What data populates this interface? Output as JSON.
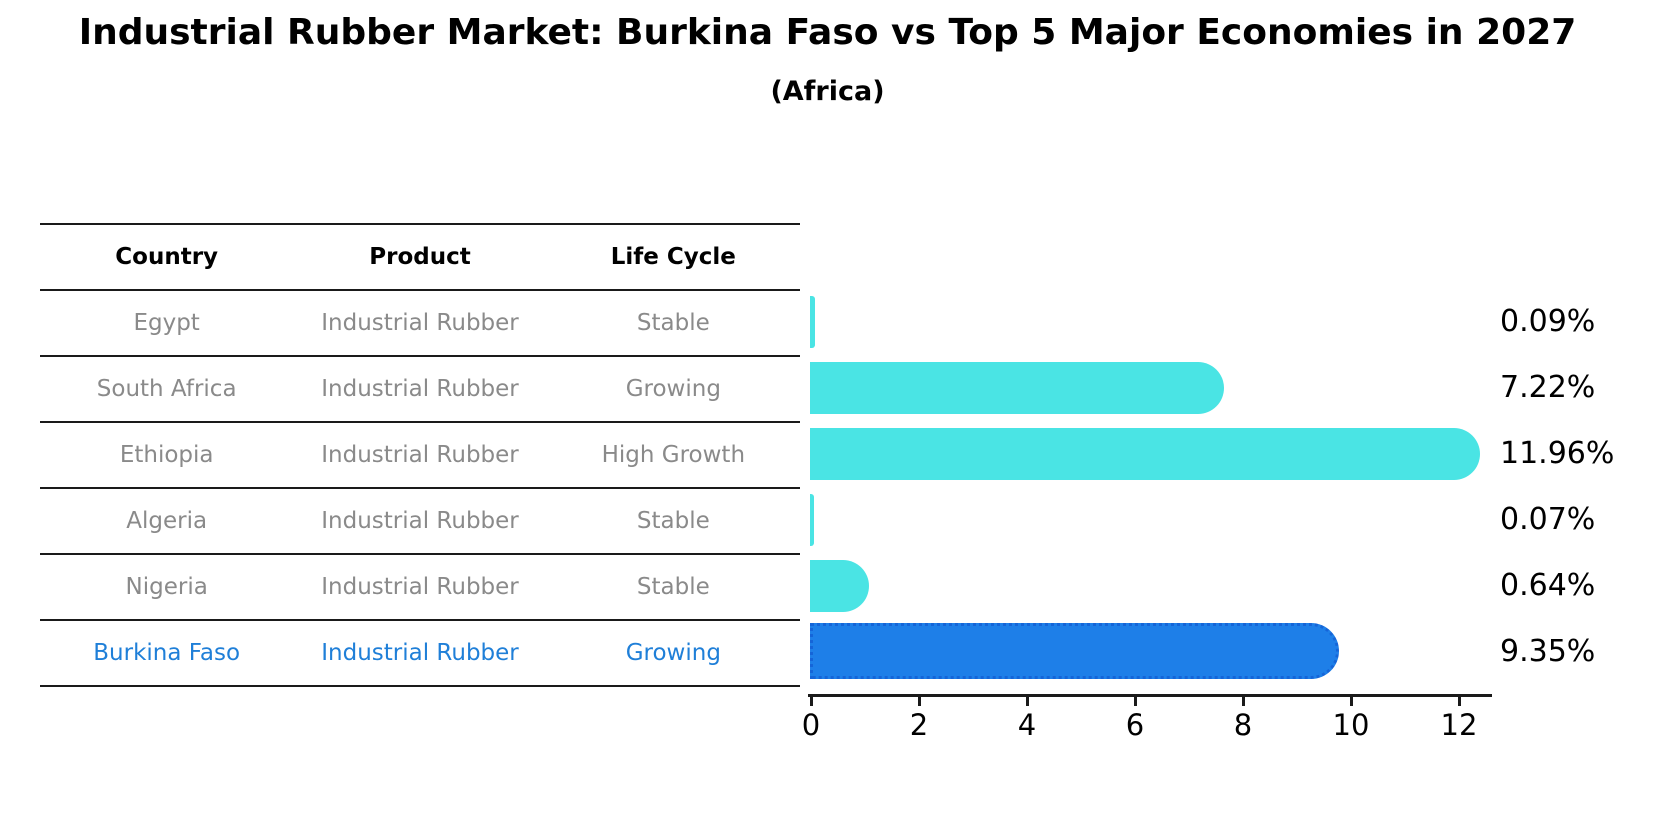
{
  "title": "Industrial Rubber Market: Burkina Faso vs Top 5 Major Economies in 2027",
  "subtitle": "(Africa)",
  "table": {
    "headers": [
      "Country",
      "Product",
      "Life Cycle"
    ],
    "rows": [
      {
        "country": "Egypt",
        "product": "Industrial Rubber",
        "life_cycle": "Stable",
        "highlight": false
      },
      {
        "country": "South Africa",
        "product": "Industrial Rubber",
        "life_cycle": "Growing",
        "highlight": false
      },
      {
        "country": "Ethiopia",
        "product": "Industrial Rubber",
        "life_cycle": "High Growth",
        "highlight": false
      },
      {
        "country": "Algeria",
        "product": "Industrial Rubber",
        "life_cycle": "Stable",
        "highlight": false
      },
      {
        "country": "Nigeria",
        "product": "Industrial Rubber",
        "life_cycle": "Stable",
        "highlight": false
      },
      {
        "country": "Burkina Faso",
        "product": "Industrial Rubber",
        "life_cycle": "Growing",
        "highlight": true
      }
    ]
  },
  "chart_data": {
    "type": "bar",
    "orientation": "horizontal",
    "title": "Industrial Rubber Market: Burkina Faso vs Top 5 Major Economies in 2027 (Africa)",
    "categories": [
      "Egypt",
      "South Africa",
      "Ethiopia",
      "Algeria",
      "Nigeria",
      "Burkina Faso"
    ],
    "values": [
      0.09,
      7.22,
      11.96,
      0.07,
      0.64,
      9.35
    ],
    "value_labels": [
      "0.09%",
      "7.22%",
      "11.96%",
      "0.07%",
      "0.64%",
      "9.35%"
    ],
    "unit": "percent",
    "xlabel": "",
    "ylabel": "",
    "xlim": [
      0,
      12.5
    ],
    "x_ticks": [
      "0",
      "2",
      "4",
      "6",
      "8",
      "10",
      "12"
    ],
    "grid": "off",
    "legend": "none",
    "bar_color": "#4ae4e4",
    "highlight_index": 5,
    "highlight_bar_color": "#1e7fe8",
    "highlight_edge_color": "#1565d8",
    "highlight_text_color": "#1f7fd8",
    "row_text_color": "#8a8a8a"
  }
}
